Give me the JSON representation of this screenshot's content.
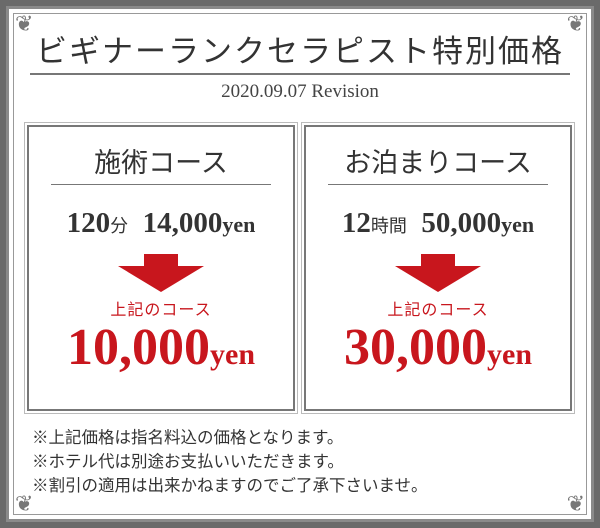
{
  "title": "ビギナーランクセラピスト特別価格",
  "revision": "2020.09.07 Revision",
  "courses": [
    {
      "name": "施術コース",
      "duration_num": "120",
      "duration_unit": "分",
      "orig_price": "14,000",
      "orig_unit": "yen",
      "note": "上記のコース",
      "new_price": "10,000",
      "new_unit": "yen"
    },
    {
      "name": "お泊まりコース",
      "duration_num": "12",
      "duration_unit": "時間",
      "orig_price": "50,000",
      "orig_unit": "yen",
      "note": "上記のコース",
      "new_price": "30,000",
      "new_unit": "yen"
    }
  ],
  "notes": [
    "※上記価格は指名料込の価格となります。",
    "※ホテル代は別途お支払いいただきます。",
    "※割引の適用は出来かねますのでご了承下さいませ。"
  ],
  "colors": {
    "accent": "#c8161d",
    "frame": "#6a6a6a"
  },
  "icons": [
    "down-arrow-icon",
    "corner-ornament-icon"
  ]
}
